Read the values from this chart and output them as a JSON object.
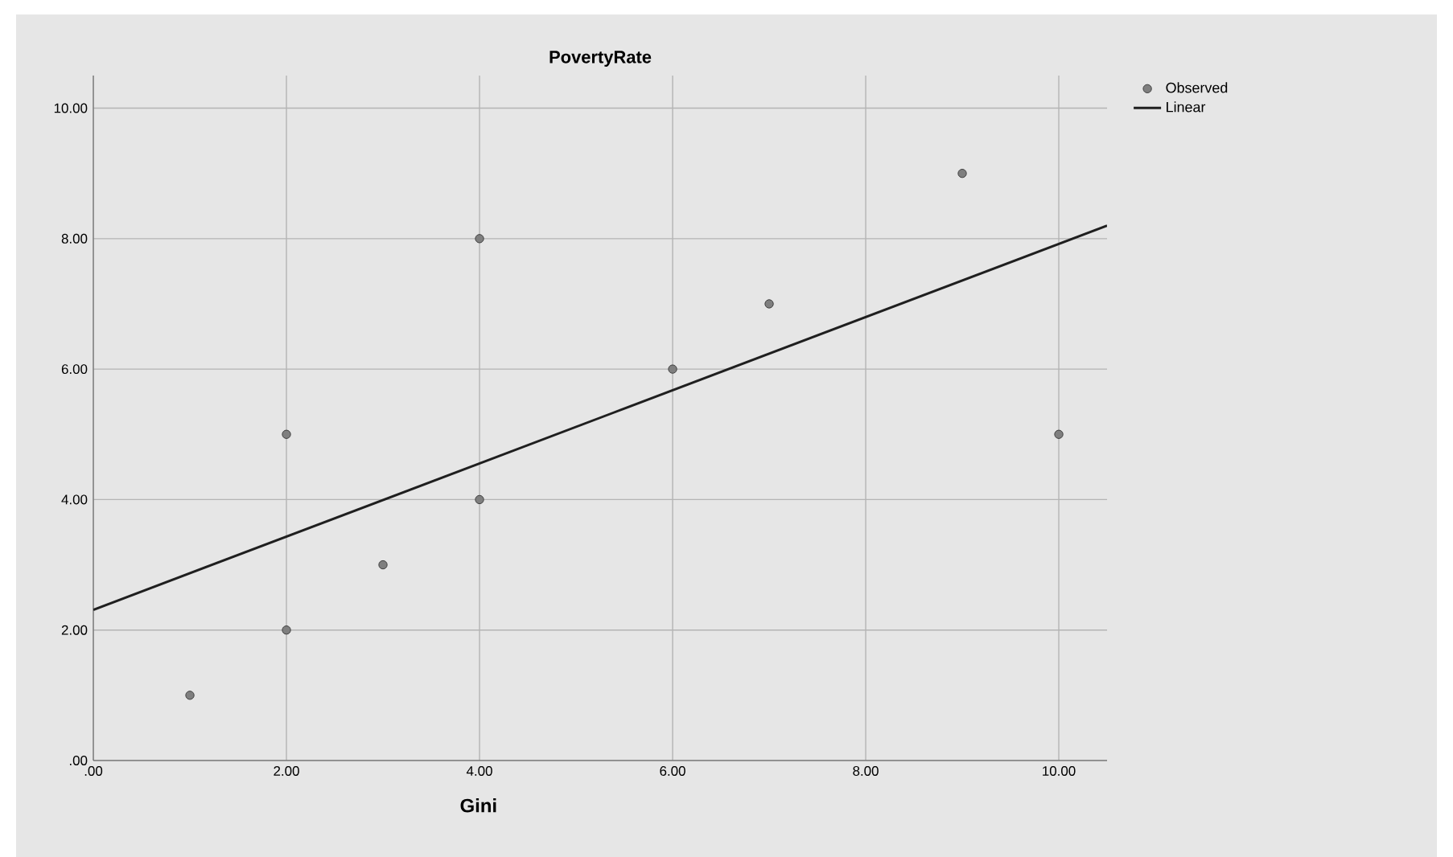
{
  "chart_data": {
    "type": "scatter",
    "title": "PovertyRate",
    "xlabel": "Gini",
    "xlim": [
      0,
      10.5
    ],
    "ylim": [
      0,
      10.5
    ],
    "xticks": [
      {
        "value": 0,
        "label": ".00"
      },
      {
        "value": 2,
        "label": "2.00"
      },
      {
        "value": 4,
        "label": "4.00"
      },
      {
        "value": 6,
        "label": "6.00"
      },
      {
        "value": 8,
        "label": "8.00"
      },
      {
        "value": 10,
        "label": "10.00"
      }
    ],
    "yticks": [
      {
        "value": 0,
        "label": ".00"
      },
      {
        "value": 2,
        "label": "2.00"
      },
      {
        "value": 4,
        "label": "4.00"
      },
      {
        "value": 6,
        "label": "6.00"
      },
      {
        "value": 8,
        "label": "8.00"
      },
      {
        "value": 10,
        "label": "10.00"
      }
    ],
    "grid": true,
    "legend": "top right",
    "series": [
      {
        "name": "Observed",
        "marker": "circle",
        "color": "#7f7f7f",
        "x": [
          1,
          2,
          2,
          3,
          4,
          4,
          6,
          7,
          9,
          10
        ],
        "values": [
          1,
          2,
          5,
          3,
          4,
          8,
          6,
          7,
          9,
          5
        ]
      },
      {
        "name": "Linear",
        "type": "line",
        "color": "#1f1f1f",
        "line_style": "solid",
        "marker": "none",
        "x": [
          0,
          10.5
        ],
        "values": [
          2.31,
          8.2
        ]
      }
    ]
  }
}
